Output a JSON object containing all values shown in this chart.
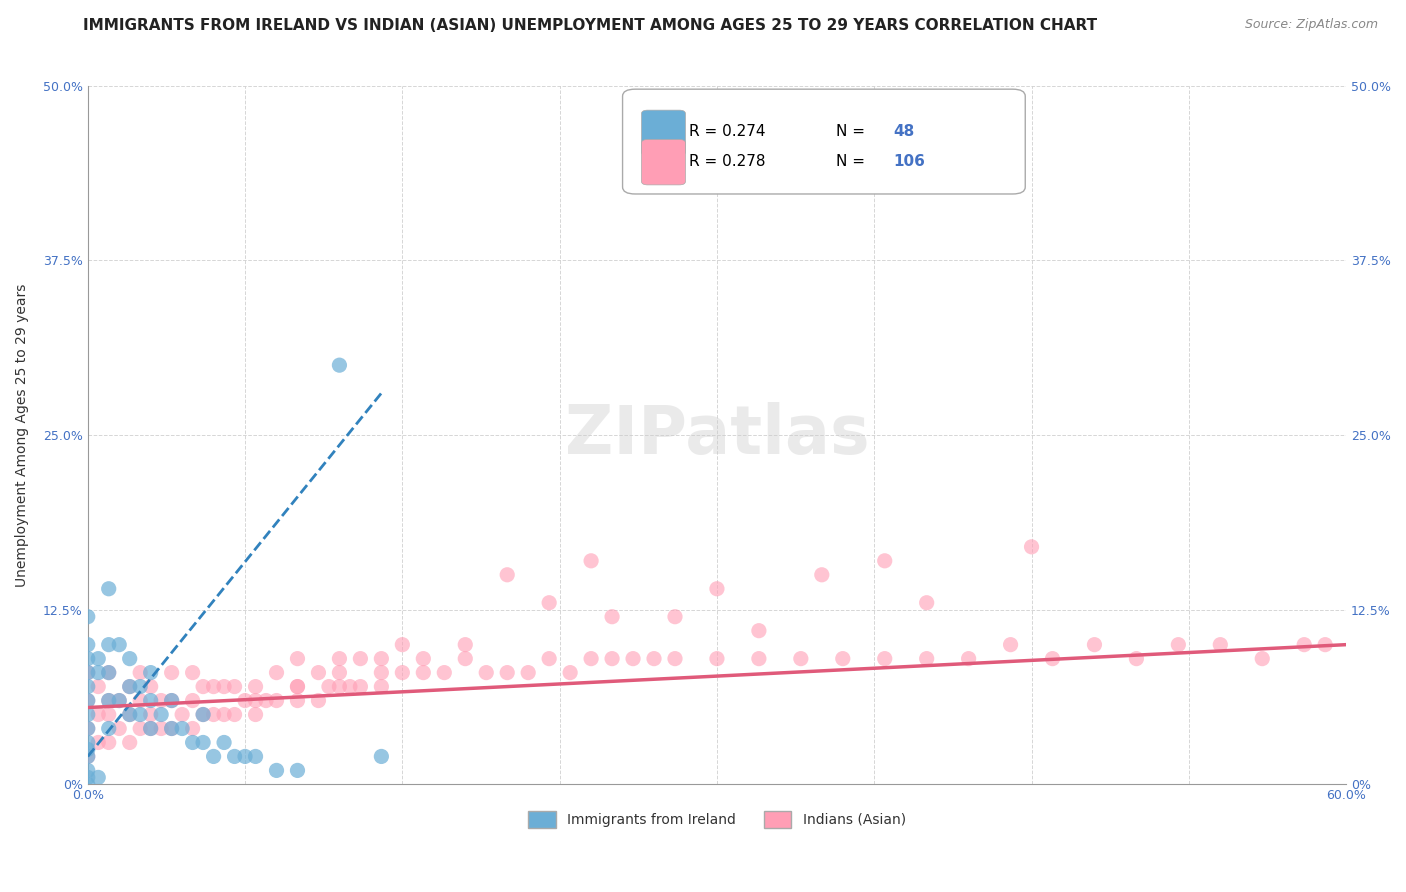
{
  "title": "IMMIGRANTS FROM IRELAND VS INDIAN (ASIAN) UNEMPLOYMENT AMONG AGES 25 TO 29 YEARS CORRELATION CHART",
  "source": "Source: ZipAtlas.com",
  "xlabel": "",
  "ylabel": "Unemployment Among Ages 25 to 29 years",
  "xlim": [
    0.0,
    0.6
  ],
  "ylim": [
    0.0,
    0.5
  ],
  "xticks": [
    0.0,
    0.075,
    0.15,
    0.225,
    0.3,
    0.375,
    0.45,
    0.525,
    0.6
  ],
  "xtick_labels": [
    "0.0%",
    "",
    "",
    "",
    "",
    "",
    "",
    "",
    "60.0%"
  ],
  "ytick_labels": [
    "0%",
    "12.5%",
    "25.0%",
    "37.5%",
    "50.0%"
  ],
  "yticks": [
    0.0,
    0.125,
    0.25,
    0.375,
    0.5
  ],
  "grid_color": "#cccccc",
  "legend_R_blue": "0.274",
  "legend_N_blue": "48",
  "legend_R_pink": "0.278",
  "legend_N_pink": "106",
  "legend_label_blue": "Immigrants from Ireland",
  "legend_label_pink": "Indians (Asian)",
  "blue_color": "#6baed6",
  "pink_color": "#ff9eb5",
  "blue_trend_color": "#3182bd",
  "pink_trend_color": "#e05a7a",
  "watermark": "ZIPatlas",
  "blue_scatter_x": [
    0.0,
    0.0,
    0.0,
    0.0,
    0.0,
    0.0,
    0.0,
    0.0,
    0.0,
    0.0,
    0.0,
    0.0,
    0.0,
    0.0,
    0.005,
    0.005,
    0.005,
    0.01,
    0.01,
    0.01,
    0.01,
    0.01,
    0.015,
    0.015,
    0.02,
    0.02,
    0.02,
    0.025,
    0.025,
    0.03,
    0.03,
    0.03,
    0.035,
    0.04,
    0.04,
    0.045,
    0.05,
    0.055,
    0.055,
    0.06,
    0.065,
    0.07,
    0.075,
    0.08,
    0.09,
    0.1,
    0.12,
    0.14
  ],
  "blue_scatter_y": [
    0.0,
    0.005,
    0.01,
    0.02,
    0.025,
    0.03,
    0.04,
    0.05,
    0.06,
    0.07,
    0.08,
    0.09,
    0.1,
    0.12,
    0.005,
    0.08,
    0.09,
    0.04,
    0.06,
    0.08,
    0.1,
    0.14,
    0.06,
    0.1,
    0.05,
    0.07,
    0.09,
    0.05,
    0.07,
    0.04,
    0.06,
    0.08,
    0.05,
    0.04,
    0.06,
    0.04,
    0.03,
    0.03,
    0.05,
    0.02,
    0.03,
    0.02,
    0.02,
    0.02,
    0.01,
    0.01,
    0.3,
    0.02
  ],
  "pink_scatter_x": [
    0.0,
    0.0,
    0.0,
    0.0,
    0.005,
    0.005,
    0.005,
    0.01,
    0.01,
    0.01,
    0.01,
    0.015,
    0.015,
    0.02,
    0.02,
    0.02,
    0.025,
    0.025,
    0.025,
    0.03,
    0.03,
    0.03,
    0.035,
    0.035,
    0.04,
    0.04,
    0.04,
    0.045,
    0.05,
    0.05,
    0.05,
    0.055,
    0.055,
    0.06,
    0.06,
    0.065,
    0.065,
    0.07,
    0.07,
    0.075,
    0.08,
    0.08,
    0.085,
    0.09,
    0.09,
    0.1,
    0.1,
    0.1,
    0.11,
    0.11,
    0.115,
    0.12,
    0.12,
    0.125,
    0.13,
    0.13,
    0.14,
    0.14,
    0.15,
    0.16,
    0.17,
    0.18,
    0.19,
    0.2,
    0.21,
    0.22,
    0.23,
    0.24,
    0.25,
    0.26,
    0.27,
    0.28,
    0.3,
    0.32,
    0.34,
    0.36,
    0.38,
    0.4,
    0.42,
    0.44,
    0.46,
    0.48,
    0.5,
    0.52,
    0.54,
    0.56,
    0.58,
    0.59,
    0.2,
    0.25,
    0.15,
    0.35,
    0.22,
    0.28,
    0.16,
    0.32,
    0.1,
    0.24,
    0.3,
    0.4,
    0.08,
    0.12,
    0.45,
    0.18,
    0.38,
    0.14
  ],
  "pink_scatter_y": [
    0.02,
    0.04,
    0.06,
    0.08,
    0.03,
    0.05,
    0.07,
    0.03,
    0.05,
    0.06,
    0.08,
    0.04,
    0.06,
    0.03,
    0.05,
    0.07,
    0.04,
    0.06,
    0.08,
    0.04,
    0.05,
    0.07,
    0.04,
    0.06,
    0.04,
    0.06,
    0.08,
    0.05,
    0.04,
    0.06,
    0.08,
    0.05,
    0.07,
    0.05,
    0.07,
    0.05,
    0.07,
    0.05,
    0.07,
    0.06,
    0.05,
    0.07,
    0.06,
    0.06,
    0.08,
    0.06,
    0.07,
    0.09,
    0.06,
    0.08,
    0.07,
    0.07,
    0.09,
    0.07,
    0.07,
    0.09,
    0.07,
    0.09,
    0.08,
    0.08,
    0.08,
    0.09,
    0.08,
    0.08,
    0.08,
    0.09,
    0.08,
    0.09,
    0.09,
    0.09,
    0.09,
    0.09,
    0.09,
    0.09,
    0.09,
    0.09,
    0.09,
    0.09,
    0.09,
    0.1,
    0.09,
    0.1,
    0.09,
    0.1,
    0.1,
    0.09,
    0.1,
    0.1,
    0.15,
    0.12,
    0.1,
    0.15,
    0.13,
    0.12,
    0.09,
    0.11,
    0.07,
    0.16,
    0.14,
    0.13,
    0.06,
    0.08,
    0.17,
    0.1,
    0.16,
    0.08
  ],
  "blue_trend_x": [
    0.0,
    0.14
  ],
  "blue_trend_y": [
    0.02,
    0.28
  ],
  "pink_trend_x": [
    0.0,
    0.6
  ],
  "pink_trend_y": [
    0.055,
    0.1
  ],
  "title_fontsize": 11,
  "axis_label_fontsize": 10,
  "tick_fontsize": 9,
  "legend_fontsize": 11,
  "source_fontsize": 9
}
